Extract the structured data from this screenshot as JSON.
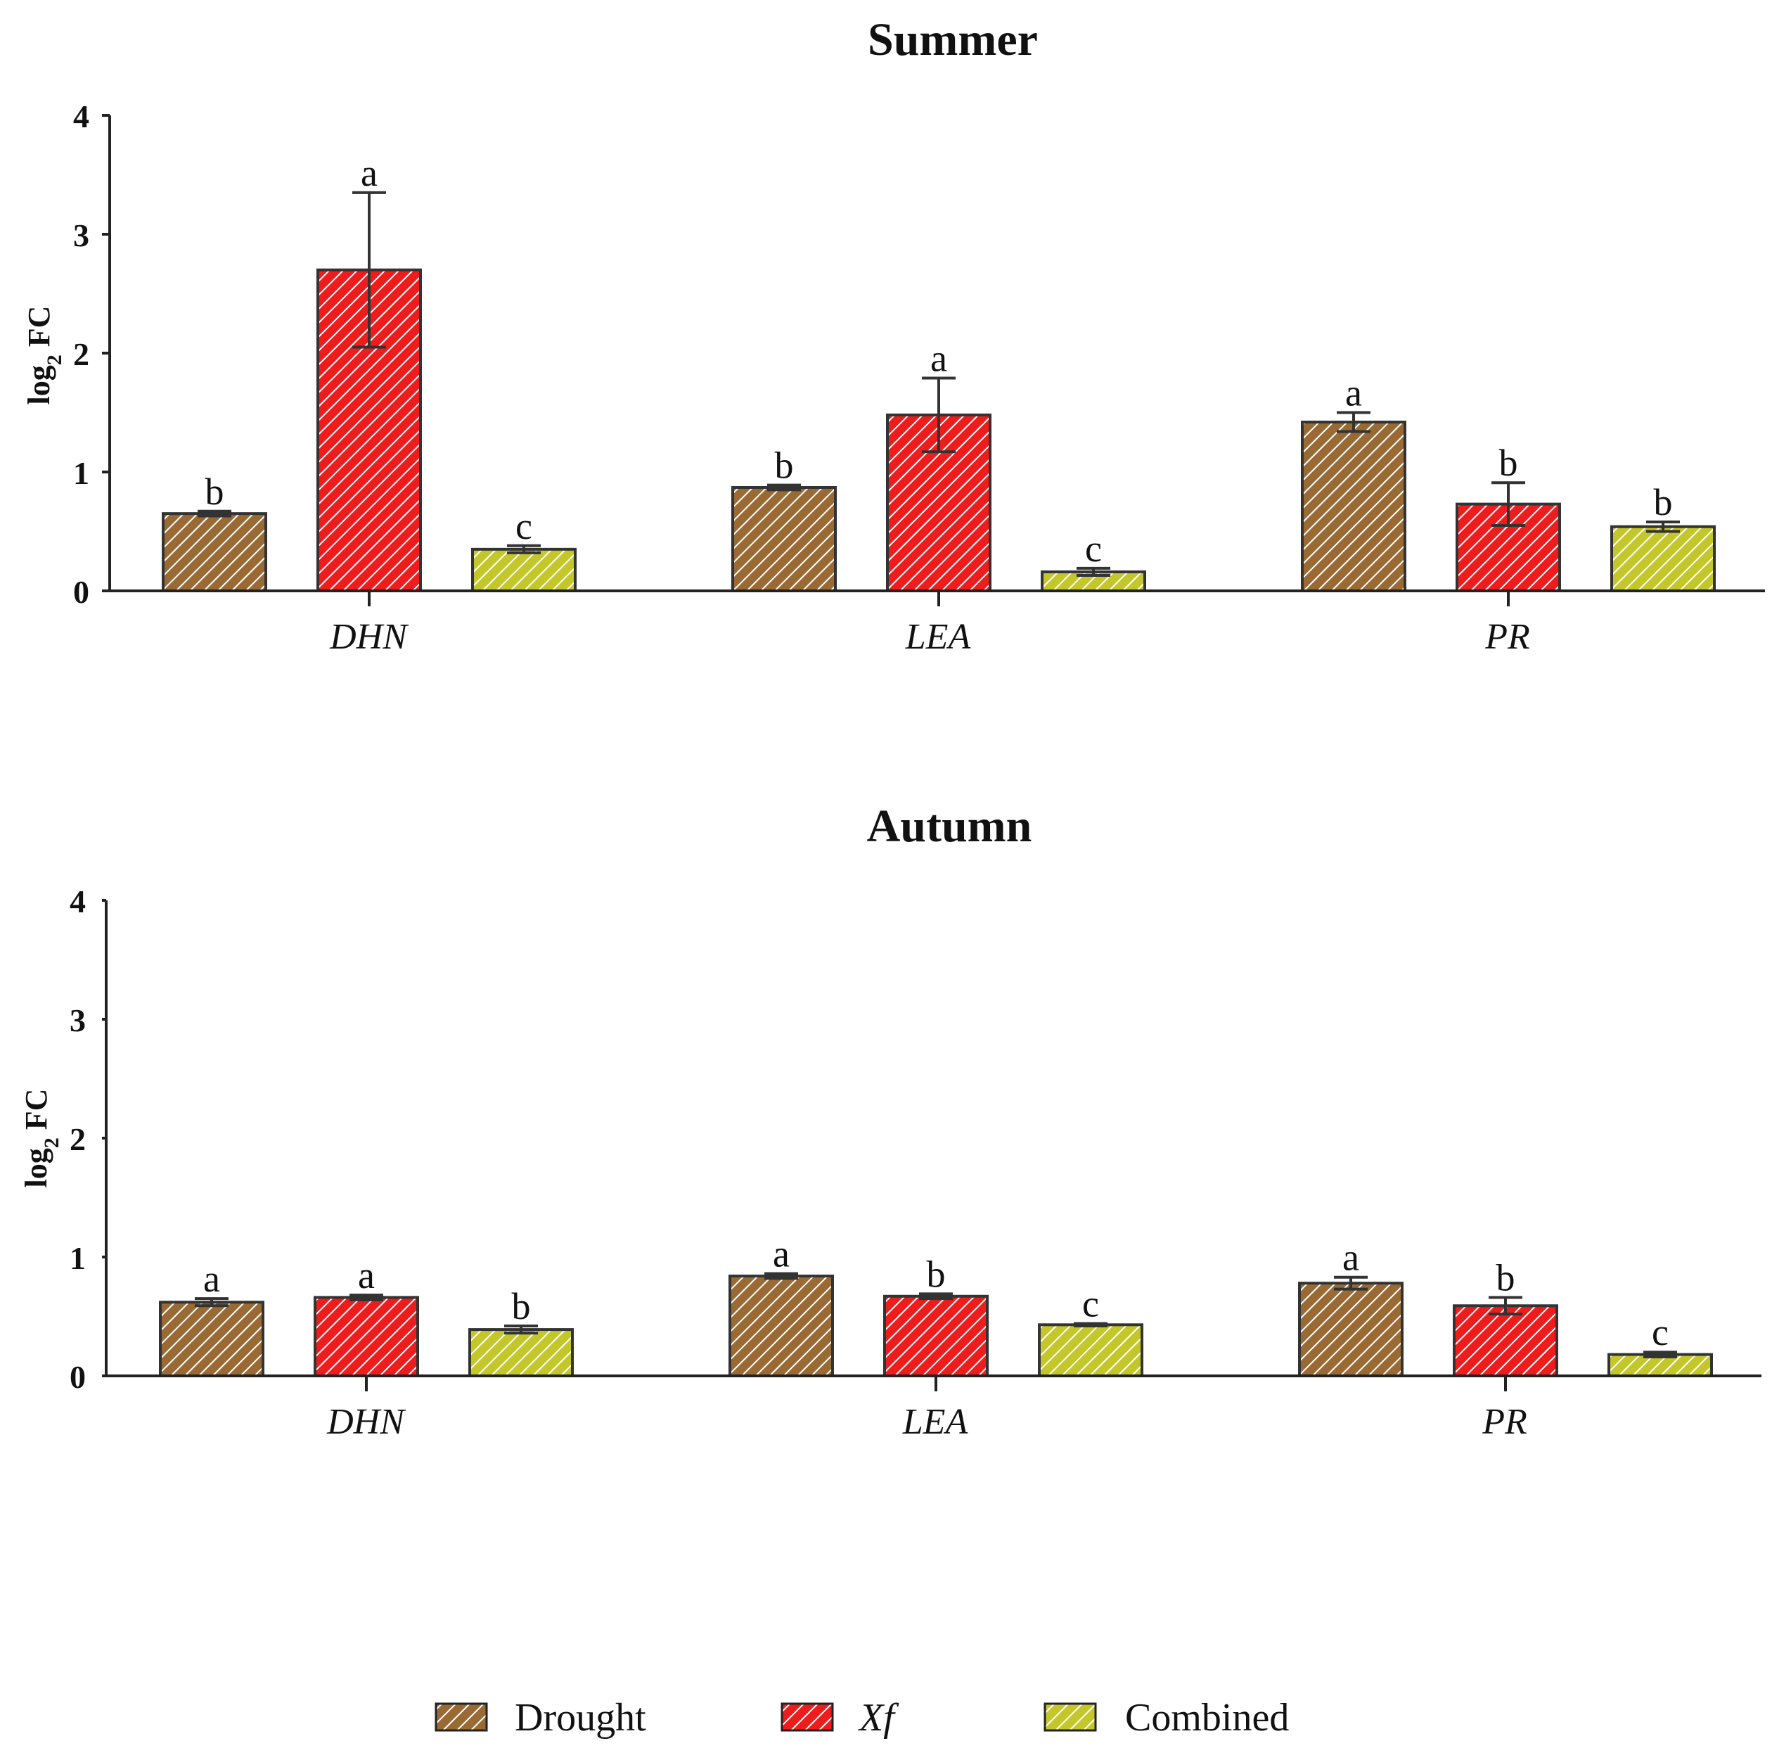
{
  "chart_data": [
    {
      "type": "bar",
      "title": "Summer",
      "ylabel": "log₂ FC",
      "ylabel_base": "log",
      "ylabel_sub": "2",
      "ylabel_rest": " FC",
      "ylim": [
        0,
        4
      ],
      "yticks": [
        "0",
        "1",
        "2",
        "3",
        "4"
      ],
      "categories": [
        "DHN",
        "LEA",
        "PR"
      ],
      "series": [
        {
          "name": "Drought",
          "values": [
            0.65,
            0.87,
            1.42
          ],
          "errors": [
            0.02,
            0.02,
            0.08
          ],
          "letters": [
            "b",
            "b",
            "a"
          ]
        },
        {
          "name": "Xf",
          "values": [
            2.7,
            1.48,
            0.73
          ],
          "errors": [
            0.65,
            0.31,
            0.18
          ],
          "letters": [
            "a",
            "a",
            "b"
          ]
        },
        {
          "name": "Combined",
          "values": [
            0.35,
            0.16,
            0.54
          ],
          "errors": [
            0.03,
            0.03,
            0.04
          ],
          "letters": [
            "c",
            "c",
            "b"
          ]
        }
      ]
    },
    {
      "type": "bar",
      "title": "Autumn",
      "ylabel": "log₂ FC",
      "ylabel_base": "log",
      "ylabel_sub": "2",
      "ylabel_rest": " FC",
      "ylim": [
        0,
        4
      ],
      "yticks": [
        "0",
        "1",
        "2",
        "3",
        "4"
      ],
      "categories": [
        "DHN",
        "LEA",
        "PR"
      ],
      "series": [
        {
          "name": "Drought",
          "values": [
            0.62,
            0.84,
            0.78
          ],
          "errors": [
            0.03,
            0.02,
            0.05
          ],
          "letters": [
            "a",
            "a",
            "a"
          ]
        },
        {
          "name": "Xf",
          "values": [
            0.66,
            0.67,
            0.59
          ],
          "errors": [
            0.02,
            0.02,
            0.07
          ],
          "letters": [
            "a",
            "b",
            "b"
          ]
        },
        {
          "name": "Combined",
          "values": [
            0.39,
            0.43,
            0.18
          ],
          "errors": [
            0.03,
            0.01,
            0.02
          ],
          "letters": [
            "b",
            "c",
            "c"
          ]
        }
      ]
    }
  ],
  "legend": {
    "items": [
      {
        "name": "Drought",
        "color": "#9a6a35"
      },
      {
        "name": "Xf",
        "color": "#ee1c1c"
      },
      {
        "name": "Combined",
        "color": "#c4c72a"
      }
    ]
  }
}
